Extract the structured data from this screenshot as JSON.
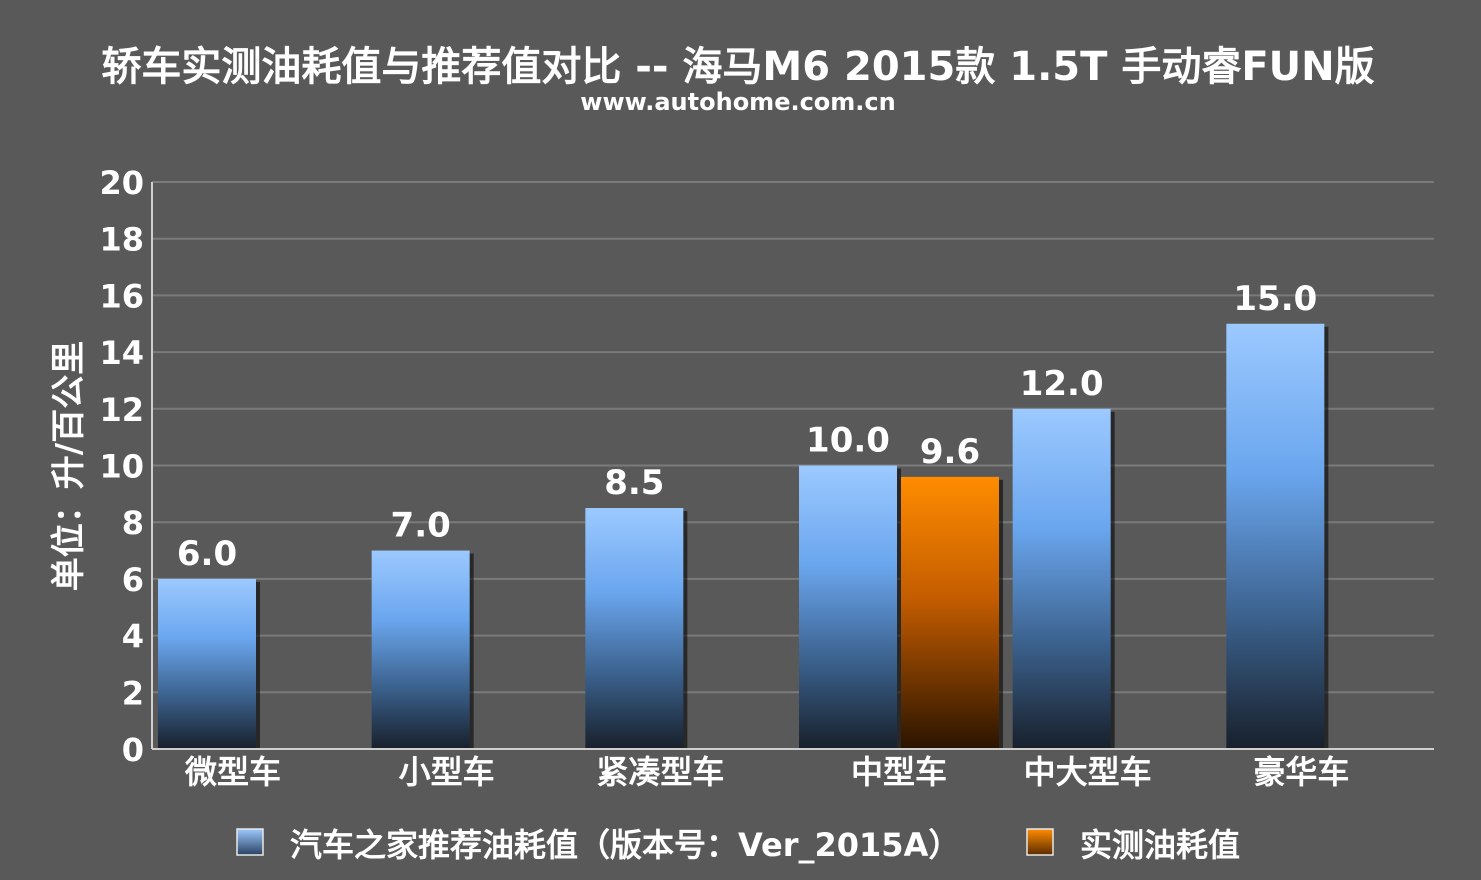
{
  "chart_data": {
    "type": "bar",
    "title": "轿车实测油耗值与推荐值对比 -- 海马M6 2015款 1.5T 手动睿FUN版",
    "subtitle": "www.autohome.com.cn",
    "ylabel": "单位：升/百公里",
    "xlabel": "",
    "ylim": [
      0,
      20
    ],
    "yticks": [
      0,
      2,
      4,
      6,
      8,
      10,
      12,
      14,
      16,
      18,
      20
    ],
    "grid": true,
    "legend_position": "bottom",
    "categories": [
      "微型车",
      "小型车",
      "紧凑型车",
      "中型车",
      "中大型车",
      "豪华车"
    ],
    "series": [
      {
        "name": "汽车之家推荐油耗值（版本号：Ver_2015A）",
        "values": [
          6.0,
          7.0,
          8.5,
          10.0,
          12.0,
          15.0
        ],
        "labels": [
          "6.0",
          "7.0",
          "8.5",
          "10.0",
          "12.0",
          "15.0"
        ],
        "color": "#7fb6ff"
      },
      {
        "name": "实测油耗值",
        "values": [
          null,
          null,
          null,
          9.6,
          null,
          null
        ],
        "labels": [
          "",
          "",
          "",
          "9.6",
          "",
          ""
        ],
        "color": "#ff8a00"
      }
    ]
  }
}
